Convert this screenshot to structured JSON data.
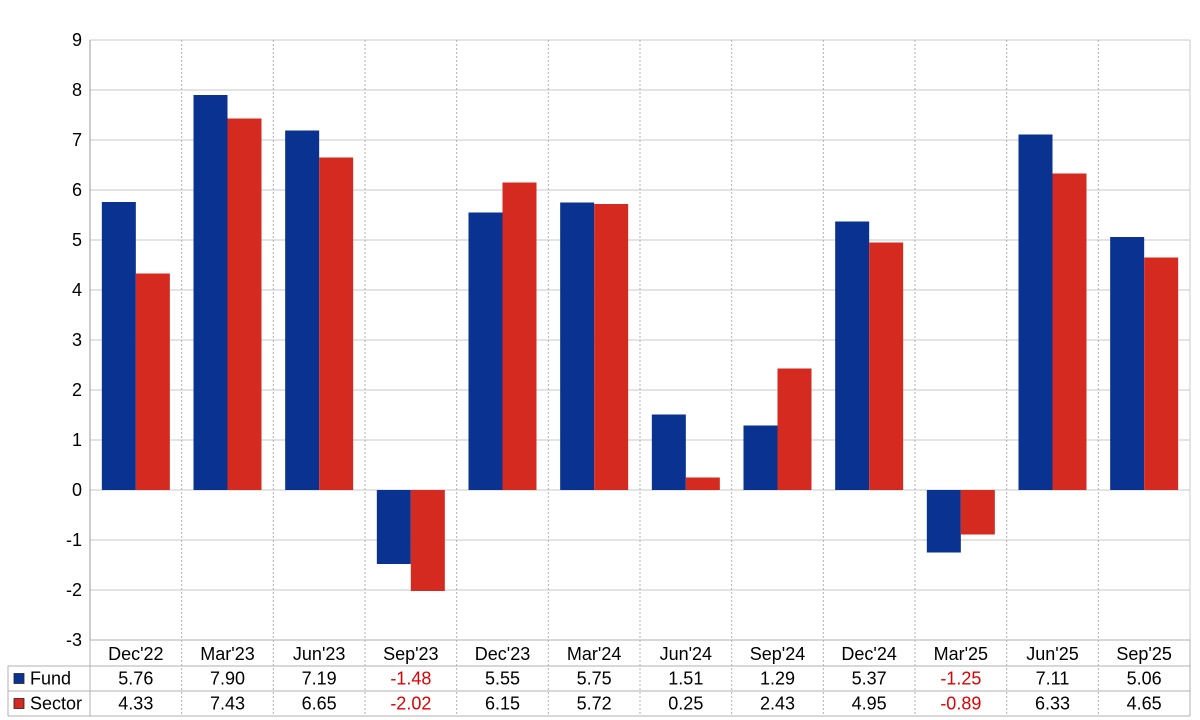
{
  "chart_data": {
    "type": "bar",
    "title": "",
    "xlabel": "",
    "ylabel": "",
    "ylim": [
      -3,
      9
    ],
    "yticks": [
      "-3",
      "-2",
      "-1",
      "0",
      "1",
      "2",
      "3",
      "4",
      "5",
      "6",
      "7",
      "8",
      "9"
    ],
    "grid": true,
    "legend": "data-table",
    "categories": [
      "Dec'22",
      "Mar'23",
      "Jun'23",
      "Sep'23",
      "Dec'23",
      "Mar'24",
      "Jun'24",
      "Sep'24",
      "Dec'24",
      "Mar'25",
      "Jun'25",
      "Sep'25"
    ],
    "series": [
      {
        "name": "Fund",
        "color": "#0A3291",
        "values": [
          5.76,
          7.9,
          7.19,
          -1.48,
          5.55,
          5.75,
          1.51,
          1.29,
          5.37,
          -1.25,
          7.11,
          5.06
        ],
        "labels": [
          "5.76",
          "7.90",
          "7.19",
          "-1.48",
          "5.55",
          "5.75",
          "1.51",
          "1.29",
          "5.37",
          "-1.25",
          "7.11",
          "5.06"
        ]
      },
      {
        "name": "Sector",
        "color": "#D42A20",
        "values": [
          4.33,
          7.43,
          6.65,
          -2.02,
          6.15,
          5.72,
          0.25,
          2.43,
          4.95,
          -0.89,
          6.33,
          4.65
        ],
        "labels": [
          "4.33",
          "7.43",
          "6.65",
          "-2.02",
          "6.15",
          "5.72",
          "0.25",
          "2.43",
          "4.95",
          "-0.89",
          "6.33",
          "4.65"
        ]
      }
    ],
    "negative_value_color": "#E00000"
  }
}
